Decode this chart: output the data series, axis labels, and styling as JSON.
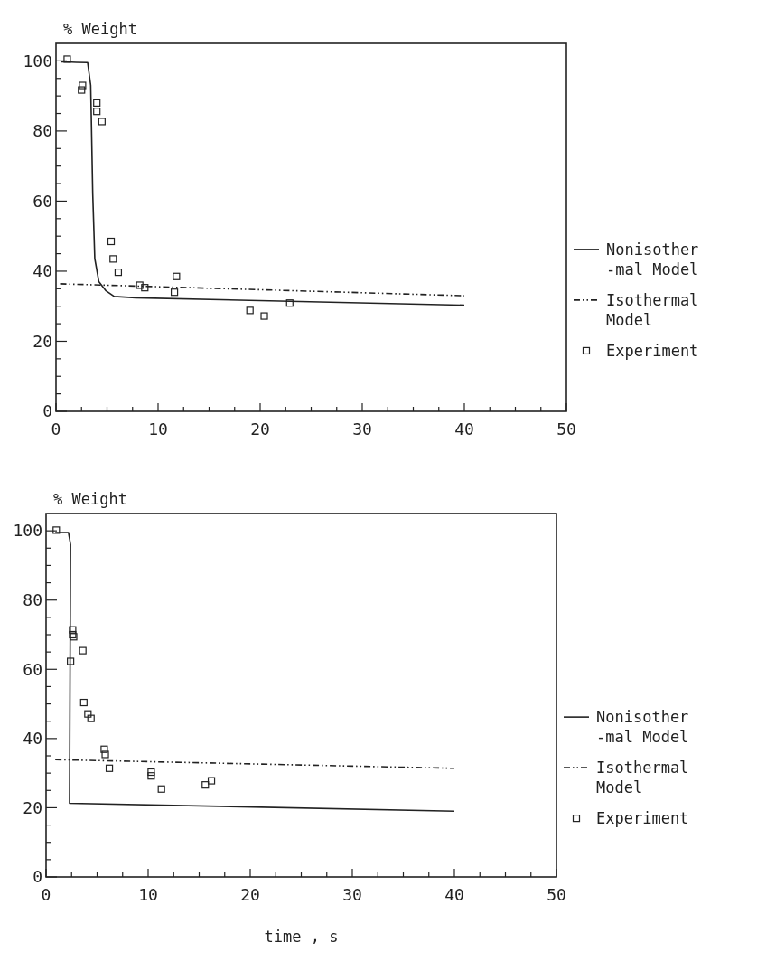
{
  "chart_data": [
    {
      "type": "line",
      "ylabel": "% Weight",
      "xlim": [
        0,
        50
      ],
      "ylim": [
        0,
        105
      ],
      "xticks": [
        0,
        {
          "value": 2.5,
          "label": null
        },
        {
          "value": 5,
          "label": null
        },
        {
          "value": 7.5,
          "label": null
        },
        10,
        {
          "value": 12.5,
          "label": null
        },
        {
          "value": 15,
          "label": null
        },
        {
          "value": 17.5,
          "label": null
        },
        20,
        {
          "value": 22.5,
          "label": null
        },
        {
          "value": 25,
          "label": null
        },
        {
          "value": 27.5,
          "label": null
        },
        30,
        {
          "value": 32.5,
          "label": null
        },
        {
          "value": 35,
          "label": null
        },
        {
          "value": 37.5,
          "label": null
        },
        40,
        {
          "value": 42.5,
          "label": null
        },
        {
          "value": 45,
          "label": null
        },
        {
          "value": 47.5,
          "label": null
        },
        50
      ],
      "yticks": [
        0,
        {
          "value": 5,
          "label": null
        },
        {
          "value": 10,
          "label": null
        },
        {
          "value": 15,
          "label": null
        },
        20,
        {
          "value": 25,
          "label": null
        },
        {
          "value": 30,
          "label": null
        },
        {
          "value": 35,
          "label": null
        },
        40,
        {
          "value": 45,
          "label": null
        },
        {
          "value": 50,
          "label": null
        },
        {
          "value": 55,
          "label": null
        },
        60,
        {
          "value": 65,
          "label": null
        },
        {
          "value": 70,
          "label": null
        },
        {
          "value": 75,
          "label": null
        },
        80,
        {
          "value": 85,
          "label": null
        },
        {
          "value": 90,
          "label": null
        },
        {
          "value": 95,
          "label": null
        },
        100
      ],
      "grid": false,
      "legend": "right",
      "series": [
        {
          "name": "Nonisother\n-mal Model",
          "color": "#222222",
          "line_style": "solid",
          "x": [
            0.5,
            1,
            2,
            3.1,
            3.4,
            3.6,
            3.8,
            4.2,
            4.9,
            5.7,
            7.8,
            40
          ],
          "values": [
            99.7,
            99.7,
            99.6,
            99.5,
            93,
            62,
            43.6,
            37,
            34.4,
            32.8,
            32.4,
            30.3
          ]
        },
        {
          "name": "Isothermal\nModel",
          "color": "#222222",
          "line_style": "dashed",
          "x": [
            0.4,
            40
          ],
          "values": [
            36.4,
            33
          ]
        },
        {
          "name": "Experiment",
          "type": "scatter",
          "color": "#222222",
          "marker": "square",
          "x": [
            1.1,
            2.5,
            2.6,
            4,
            4,
            4.5,
            5.4,
            5.6,
            6.1,
            8.2,
            8.7,
            11.8,
            11.6,
            19,
            20.4,
            22.9
          ],
          "values": [
            100.5,
            91.7,
            93,
            88,
            85.6,
            82.7,
            48.5,
            43.5,
            39.7,
            36,
            35.3,
            38.5,
            34,
            28.8,
            27.2,
            30.9
          ]
        }
      ]
    },
    {
      "type": "line",
      "ylabel": "% Weight",
      "xlabel": "time , s",
      "xlim": [
        0,
        50
      ],
      "ylim": [
        0,
        105
      ],
      "xticks": [
        0,
        {
          "value": 2.5,
          "label": null
        },
        {
          "value": 5,
          "label": null
        },
        {
          "value": 7.5,
          "label": null
        },
        10,
        {
          "value": 12.5,
          "label": null
        },
        {
          "value": 15,
          "label": null
        },
        {
          "value": 17.5,
          "label": null
        },
        20,
        {
          "value": 22.5,
          "label": null
        },
        {
          "value": 25,
          "label": null
        },
        {
          "value": 27.5,
          "label": null
        },
        30,
        {
          "value": 32.5,
          "label": null
        },
        {
          "value": 35,
          "label": null
        },
        {
          "value": 37.5,
          "label": null
        },
        40,
        {
          "value": 42.5,
          "label": null
        },
        {
          "value": 45,
          "label": null
        },
        {
          "value": 47.5,
          "label": null
        },
        50
      ],
      "yticks": [
        0,
        {
          "value": 5,
          "label": null
        },
        {
          "value": 10,
          "label": null
        },
        {
          "value": 15,
          "label": null
        },
        20,
        {
          "value": 25,
          "label": null
        },
        {
          "value": 30,
          "label": null
        },
        {
          "value": 35,
          "label": null
        },
        40,
        {
          "value": 45,
          "label": null
        },
        {
          "value": 50,
          "label": null
        },
        {
          "value": 55,
          "label": null
        },
        60,
        {
          "value": 65,
          "label": null
        },
        {
          "value": 70,
          "label": null
        },
        {
          "value": 75,
          "label": null
        },
        80,
        {
          "value": 85,
          "label": null
        },
        {
          "value": 90,
          "label": null
        },
        {
          "value": 95,
          "label": null
        },
        100
      ],
      "grid": false,
      "legend": "right",
      "series": [
        {
          "name": "Nonisother\n-mal Model",
          "color": "#222222",
          "line_style": "solid",
          "x": [
            0.9,
            2.2,
            2.4,
            2.3,
            40
          ],
          "values": [
            99.5,
            99.5,
            96,
            21.3,
            19
          ]
        },
        {
          "name": "Isothermal\nModel",
          "color": "#222222",
          "line_style": "dashed",
          "x": [
            0.9,
            40
          ],
          "values": [
            33.9,
            31.4
          ]
        },
        {
          "name": "Experiment",
          "type": "scatter",
          "color": "#222222",
          "marker": "square",
          "x": [
            1,
            2.6,
            2.6,
            2.7,
            2.4,
            3.6,
            3.7,
            4.1,
            4.4,
            5.7,
            5.8,
            6.2,
            10.3,
            10.3,
            11.3,
            15.6,
            16.2
          ],
          "values": [
            100.2,
            71.4,
            70,
            69.4,
            62.3,
            65.4,
            50.4,
            47.1,
            45.8,
            36.9,
            35.4,
            31.4,
            30.3,
            29.2,
            25.4,
            26.6,
            27.8
          ]
        }
      ]
    }
  ]
}
